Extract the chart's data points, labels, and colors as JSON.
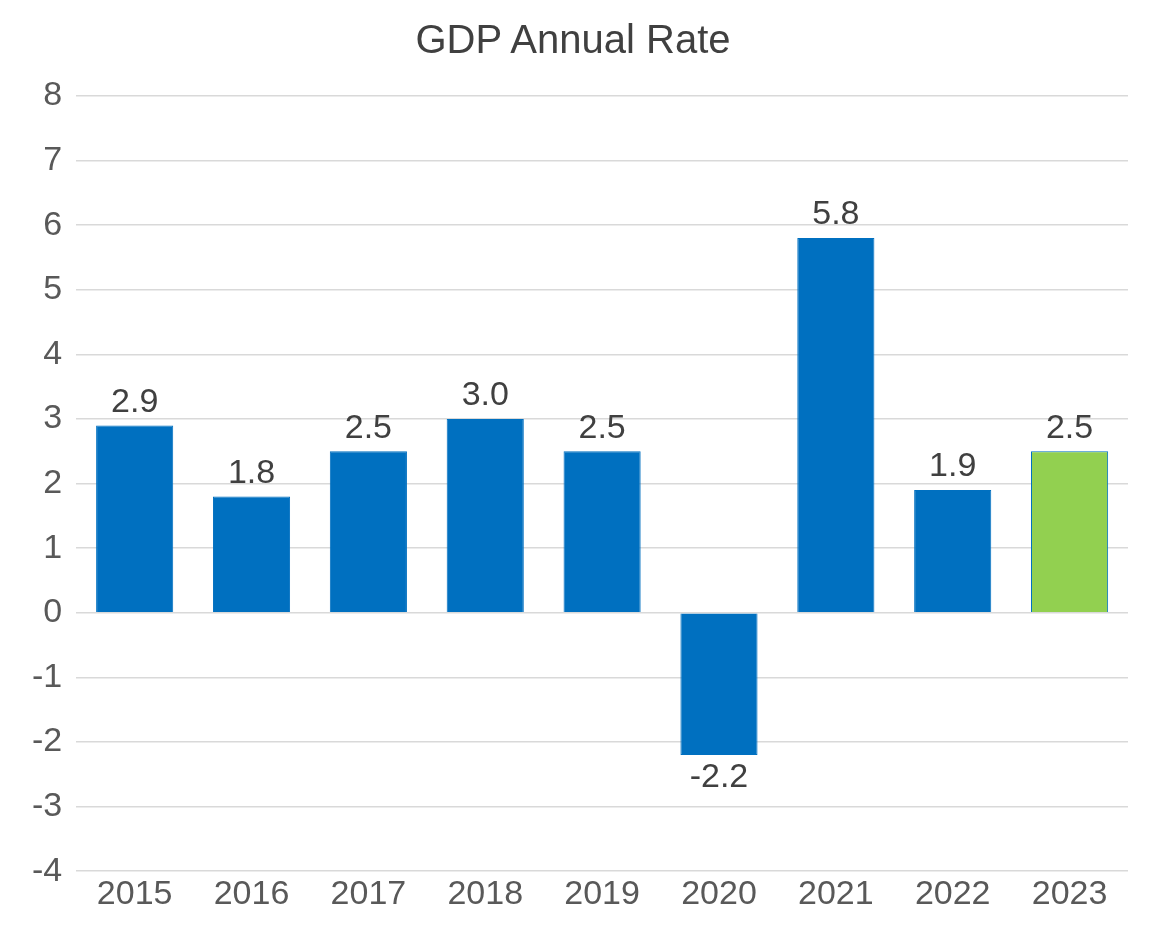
{
  "chart_data": {
    "type": "bar",
    "title": "GDP Annual Rate",
    "categories": [
      "2015",
      "2016",
      "2017",
      "2018",
      "2019",
      "2020",
      "2021",
      "2022",
      "2023"
    ],
    "values": [
      2.9,
      1.8,
      2.5,
      3.0,
      2.5,
      -2.2,
      5.8,
      1.9,
      2.5
    ],
    "colors": [
      "#0070c0",
      "#0070c0",
      "#0070c0",
      "#0070c0",
      "#0070c0",
      "#0070c0",
      "#0070c0",
      "#0070c0",
      "#92d050"
    ],
    "value_labels": [
      "2.9",
      "1.8",
      "2.5",
      "3.0",
      "2.5",
      "-2.2",
      "5.8",
      "1.9",
      "2.5"
    ],
    "ylim": [
      -4,
      8
    ],
    "yticks": [
      -4,
      -3,
      -2,
      -1,
      0,
      1,
      2,
      3,
      4,
      5,
      6,
      7,
      8
    ],
    "grid": "y",
    "legend": false
  }
}
